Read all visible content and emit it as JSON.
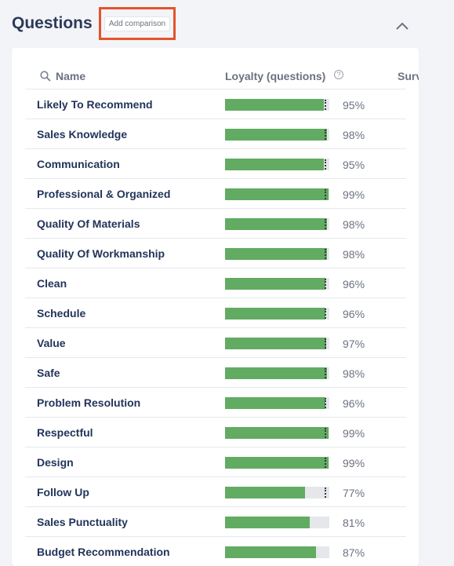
{
  "header": {
    "title": "Questions",
    "add_comparison_label": "Add comparison",
    "collapse_icon": "chevron-up-icon"
  },
  "table": {
    "columns": {
      "name": "Name",
      "loyalty": "Loyalty (questions)",
      "survey": "Surv"
    },
    "rows": [
      {
        "name": "Likely To Recommend",
        "value": 95,
        "pct": "95%"
      },
      {
        "name": "Sales Knowledge",
        "value": 98,
        "pct": "98%"
      },
      {
        "name": "Communication",
        "value": 95,
        "pct": "95%"
      },
      {
        "name": "Professional & Organized",
        "value": 99,
        "pct": "99%"
      },
      {
        "name": "Quality Of Materials",
        "value": 98,
        "pct": "98%"
      },
      {
        "name": "Quality Of Workmanship",
        "value": 98,
        "pct": "98%"
      },
      {
        "name": "Clean",
        "value": 96,
        "pct": "96%"
      },
      {
        "name": "Schedule",
        "value": 96,
        "pct": "96%"
      },
      {
        "name": "Value",
        "value": 97,
        "pct": "97%"
      },
      {
        "name": "Safe",
        "value": 98,
        "pct": "98%"
      },
      {
        "name": "Problem Resolution",
        "value": 96,
        "pct": "96%"
      },
      {
        "name": "Respectful",
        "value": 99,
        "pct": "99%"
      },
      {
        "name": "Design",
        "value": 99,
        "pct": "99%"
      },
      {
        "name": "Follow Up",
        "value": 77,
        "pct": "77%"
      },
      {
        "name": "Sales Punctuality",
        "value": 81,
        "pct": "81%"
      },
      {
        "name": "Budget Recommendation",
        "value": 87,
        "pct": "87%"
      }
    ],
    "benchmark_marker": 98
  },
  "colors": {
    "bar_fill": "#62ab62",
    "bar_track": "#e5e7eb",
    "highlight_border": "#e2542b"
  }
}
